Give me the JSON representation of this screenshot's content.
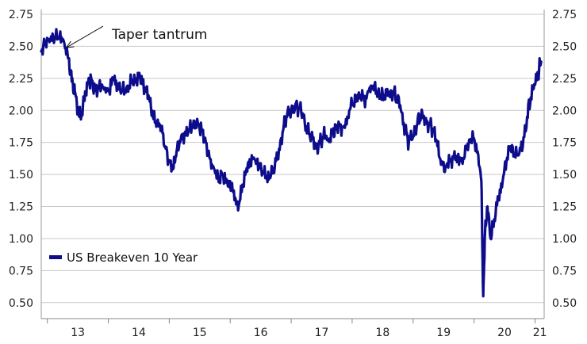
{
  "chart_data": {
    "type": "line",
    "title": "",
    "xlabel": "",
    "ylabel": "",
    "ylim": [
      0.5,
      2.75
    ],
    "yticks": [
      "0.50",
      "0.75",
      "1.00",
      "1.25",
      "1.50",
      "1.75",
      "2.00",
      "2.25",
      "2.50",
      "2.75"
    ],
    "x_tick_labels": [
      "13",
      "14",
      "15",
      "16",
      "17",
      "18",
      "19",
      "20",
      "21"
    ],
    "xlim": [
      2012.9,
      2021.15
    ],
    "grid": true,
    "dual_y_axis": true,
    "legend": {
      "position": "lower-left",
      "entries": [
        "US Breakeven 10 Year"
      ]
    },
    "annotation": {
      "text": "Taper tantrum",
      "points_to": {
        "x": 2013.35,
        "y": 2.49
      }
    },
    "series": [
      {
        "name": "US Breakeven 10 Year",
        "color": "#0d0d8c",
        "x": [
          2012.9,
          2012.97,
          2013.05,
          2013.12,
          2013.2,
          2013.27,
          2013.33,
          2013.38,
          2013.42,
          2013.45,
          2013.5,
          2013.55,
          2013.6,
          2013.66,
          2013.72,
          2013.78,
          2013.85,
          2013.92,
          2014.0,
          2014.08,
          2014.15,
          2014.22,
          2014.3,
          2014.38,
          2014.45,
          2014.52,
          2014.6,
          2014.67,
          2014.73,
          2014.8,
          2014.87,
          2014.93,
          2015.0,
          2015.07,
          2015.12,
          2015.18,
          2015.25,
          2015.32,
          2015.4,
          2015.47,
          2015.53,
          2015.6,
          2015.67,
          2015.73,
          2015.8,
          2015.87,
          2015.95,
          2016.02,
          2016.08,
          2016.13,
          2016.2,
          2016.27,
          2016.33,
          2016.4,
          2016.47,
          2016.53,
          2016.6,
          2016.67,
          2016.73,
          2016.8,
          2016.87,
          2016.93,
          2017.0,
          2017.07,
          2017.13,
          2017.2,
          2017.27,
          2017.33,
          2017.4,
          2017.47,
          2017.53,
          2017.6,
          2017.67,
          2017.73,
          2017.8,
          2017.87,
          2017.93,
          2018.0,
          2018.07,
          2018.13,
          2018.2,
          2018.27,
          2018.33,
          2018.4,
          2018.47,
          2018.53,
          2018.6,
          2018.67,
          2018.73,
          2018.8,
          2018.87,
          2018.93,
          2019.0,
          2019.07,
          2019.13,
          2019.2,
          2019.27,
          2019.33,
          2019.4,
          2019.47,
          2019.53,
          2019.6,
          2019.67,
          2019.73,
          2019.8,
          2019.87,
          2019.93,
          2020.0,
          2020.07,
          2020.12,
          2020.15,
          2020.18,
          2020.22,
          2020.27,
          2020.33,
          2020.4,
          2020.47,
          2020.53,
          2020.6,
          2020.67,
          2020.73,
          2020.8,
          2020.87,
          2020.93,
          2021.0,
          2021.05,
          2021.1
        ],
        "y": [
          2.46,
          2.52,
          2.55,
          2.56,
          2.58,
          2.54,
          2.45,
          2.3,
          2.2,
          2.15,
          2.0,
          1.93,
          2.08,
          2.22,
          2.25,
          2.15,
          2.2,
          2.18,
          2.15,
          2.25,
          2.2,
          2.15,
          2.18,
          2.22,
          2.25,
          2.26,
          2.18,
          2.1,
          1.95,
          1.9,
          1.88,
          1.72,
          1.6,
          1.55,
          1.68,
          1.75,
          1.82,
          1.85,
          1.92,
          1.9,
          1.85,
          1.75,
          1.62,
          1.55,
          1.48,
          1.5,
          1.45,
          1.4,
          1.32,
          1.22,
          1.42,
          1.55,
          1.6,
          1.62,
          1.58,
          1.52,
          1.48,
          1.5,
          1.55,
          1.7,
          1.85,
          1.95,
          2.0,
          2.05,
          2.02,
          1.95,
          1.85,
          1.8,
          1.72,
          1.75,
          1.8,
          1.78,
          1.82,
          1.85,
          1.88,
          1.88,
          1.95,
          2.05,
          2.1,
          2.12,
          2.08,
          2.15,
          2.17,
          2.15,
          2.12,
          2.1,
          2.12,
          2.15,
          2.1,
          2.0,
          1.85,
          1.75,
          1.8,
          1.9,
          1.95,
          1.92,
          1.9,
          1.85,
          1.72,
          1.6,
          1.55,
          1.6,
          1.65,
          1.62,
          1.6,
          1.7,
          1.75,
          1.78,
          1.65,
          1.45,
          0.55,
          1.05,
          1.25,
          1.0,
          1.15,
          1.3,
          1.45,
          1.6,
          1.72,
          1.65,
          1.65,
          1.72,
          1.95,
          2.1,
          2.2,
          2.3,
          2.38
        ]
      }
    ]
  }
}
